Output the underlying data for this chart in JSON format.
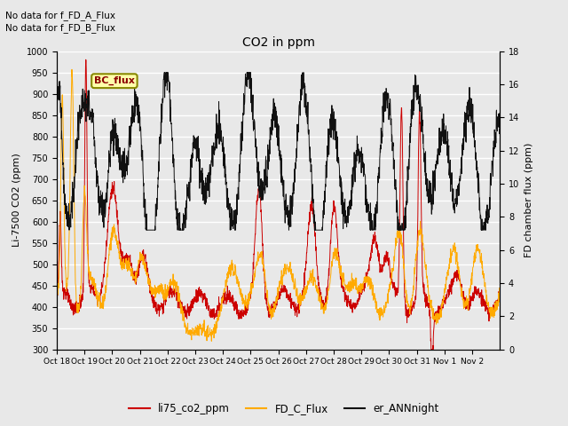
{
  "title": "CO2 in ppm",
  "ylabel_left": "Li-7500 CO2 (ppm)",
  "ylabel_right": "FD chamber flux (ppm)",
  "ylim_left": [
    300,
    1000
  ],
  "ylim_right": [
    0,
    18
  ],
  "yticks_left": [
    300,
    350,
    400,
    450,
    500,
    550,
    600,
    650,
    700,
    750,
    800,
    850,
    900,
    950,
    1000
  ],
  "yticks_right": [
    0,
    2,
    4,
    6,
    8,
    10,
    12,
    14,
    16,
    18
  ],
  "xlabel_labels": [
    "Oct 18",
    "Oct 19",
    "Oct 20",
    "Oct 21",
    "Oct 22",
    "Oct 23",
    "Oct 24",
    "Oct 25",
    "Oct 26",
    "Oct 27",
    "Oct 28",
    "Oct 29",
    "Oct 30",
    "Oct 31",
    "Nov 1",
    "Nov 2"
  ],
  "text_annotations": [
    "No data for f_FD_A_Flux",
    "No data for f_FD_B_Flux"
  ],
  "legend_label": "BC_flux",
  "legend_entries": [
    "li75_co2_ppm",
    "FD_C_Flux",
    "er_ANNnight"
  ],
  "colors": {
    "li75_co2_ppm": "#cc0000",
    "FD_C_Flux": "#ffaa00",
    "er_ANNnight": "#111111",
    "background": "#e8e8e8",
    "grid": "#ffffff",
    "bc_flux_bg": "#ffffaa",
    "bc_flux_border": "#888800"
  },
  "background_color": "#e8e8e8",
  "figsize": [
    6.4,
    4.8
  ],
  "dpi": 100
}
